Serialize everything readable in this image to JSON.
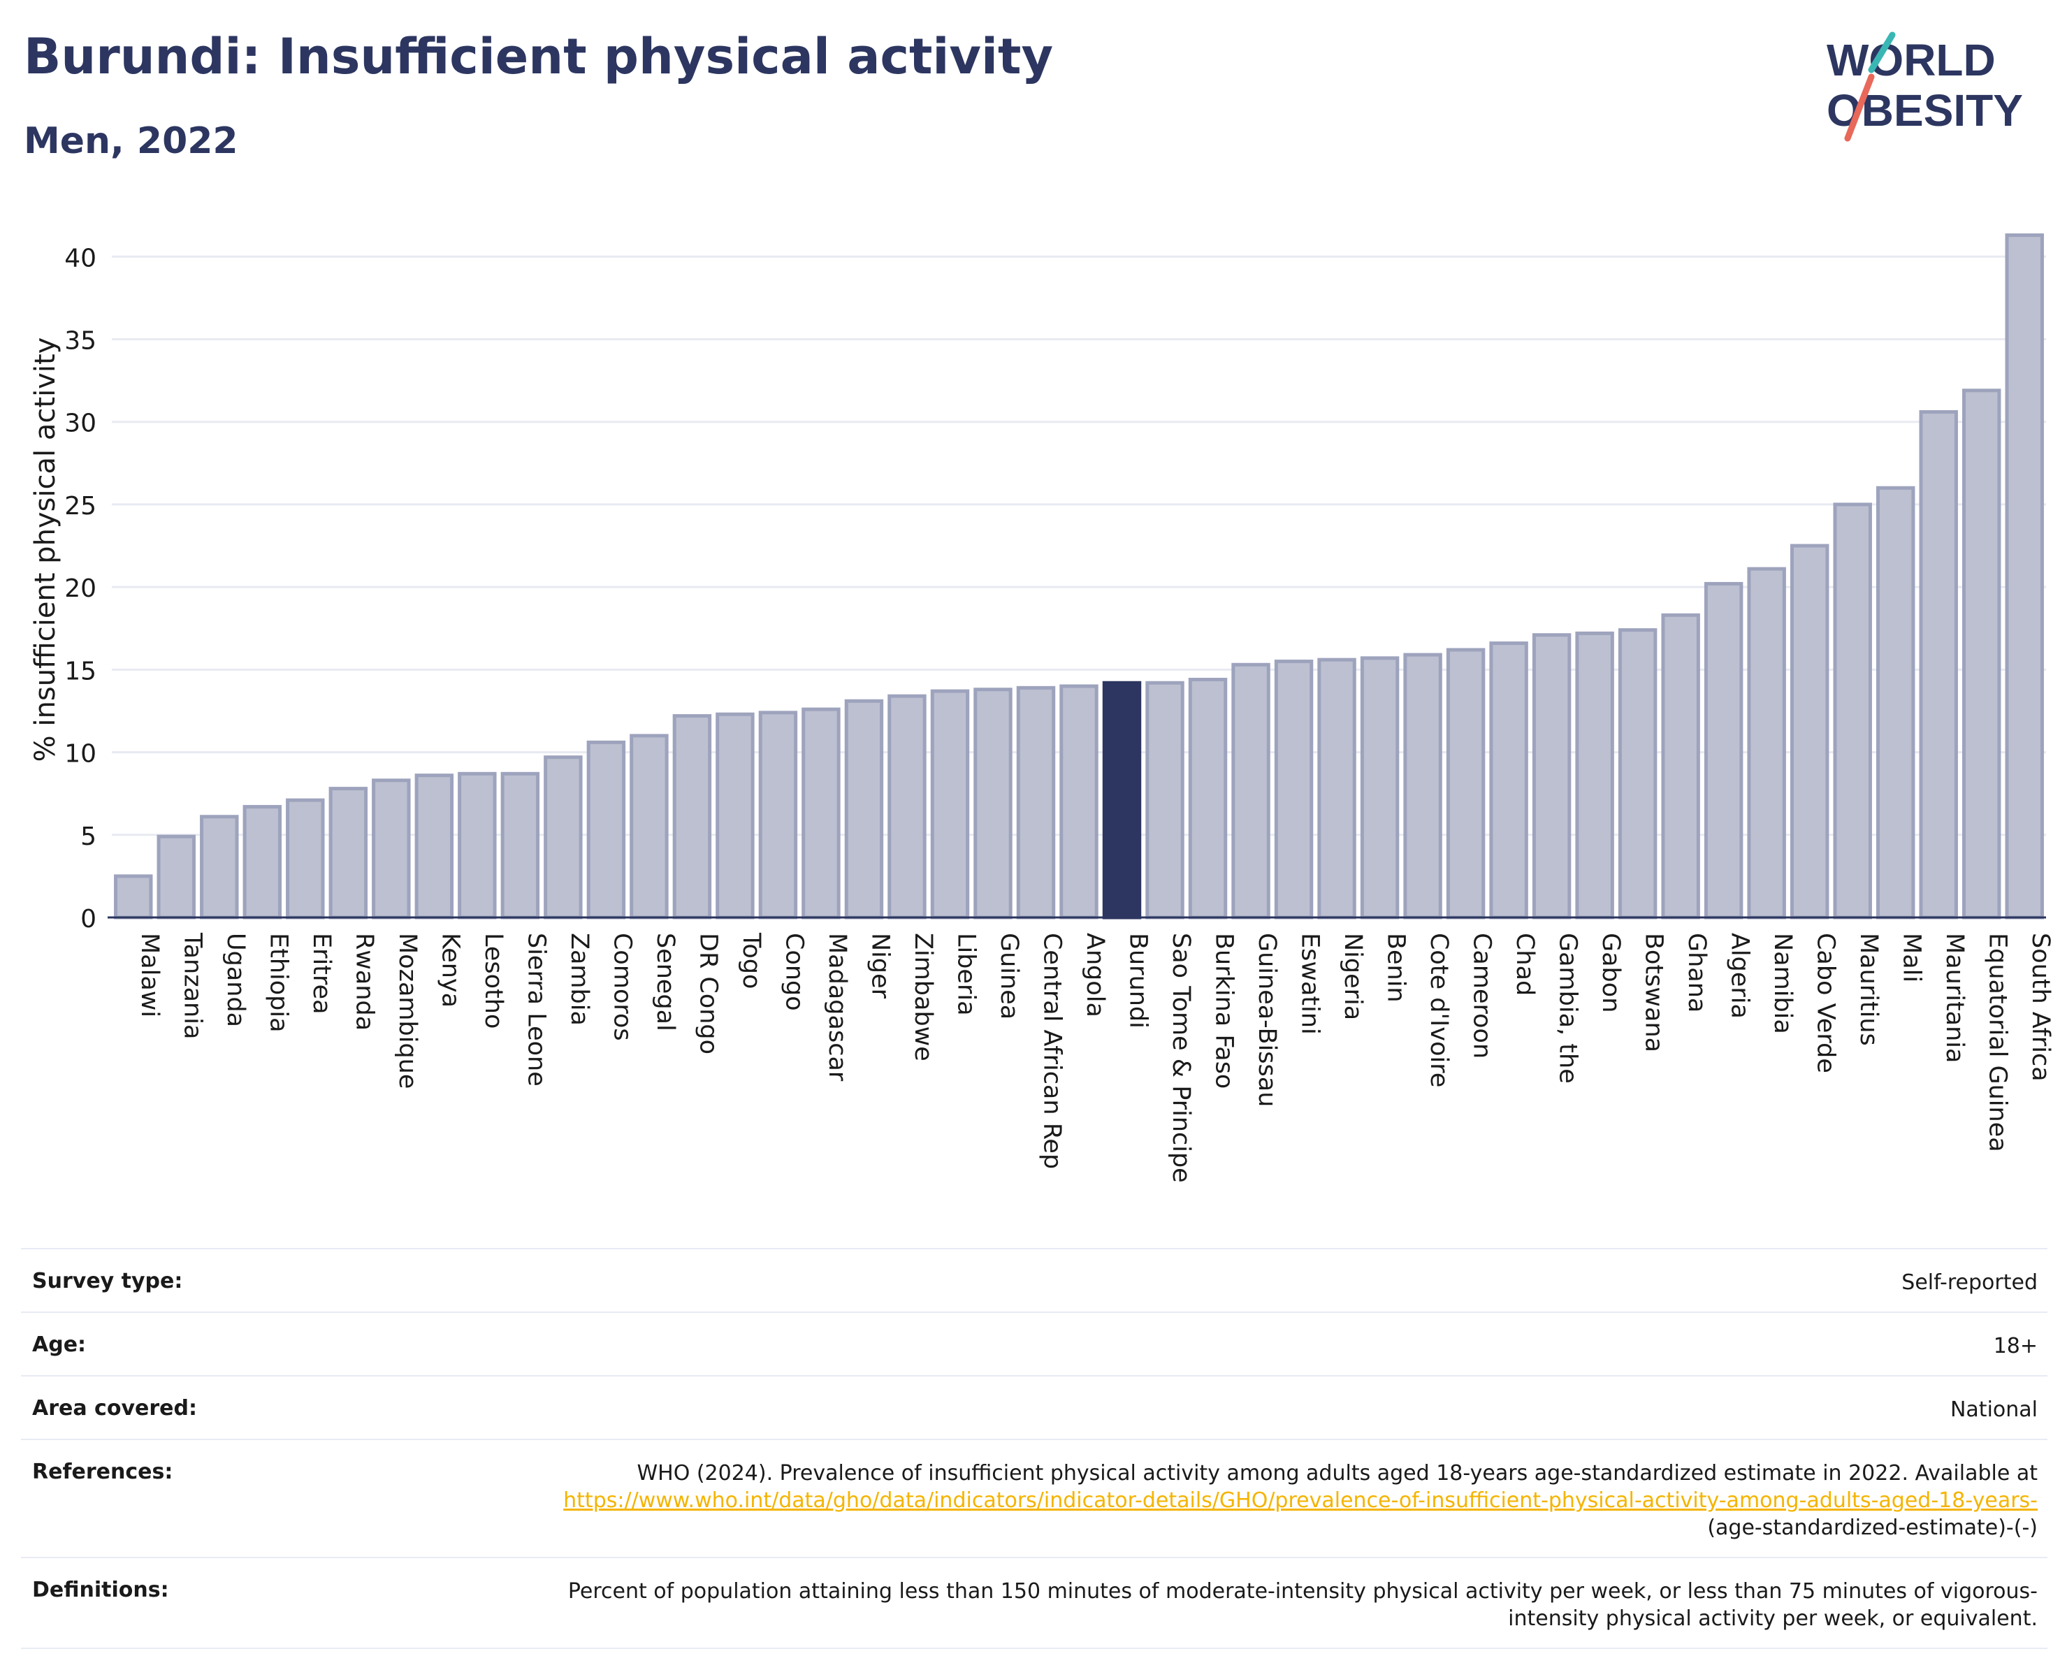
{
  "header": {
    "title": "Burundi: Insufficient physical activity",
    "subtitle": "Men, 2022",
    "logo_line1": "WORLD",
    "logo_line2": "OBESITY"
  },
  "colors": {
    "bar": "#bcc0d0",
    "bar_border": "#9ea3bd",
    "highlight": "#2c3660",
    "title": "#2c3660",
    "link": "#f4b400",
    "logo_teal": "#3ab6b4",
    "logo_coral": "#e8685a"
  },
  "chart_data": {
    "type": "bar",
    "ylabel": "% insufficient physical activity",
    "ylim": [
      0,
      42
    ],
    "yticks": [
      0,
      5,
      10,
      15,
      20,
      25,
      30,
      35,
      40
    ],
    "grid": true,
    "highlight": "Burundi",
    "categories": [
      "Malawi",
      "Tanzania",
      "Uganda",
      "Ethiopia",
      "Eritrea",
      "Rwanda",
      "Mozambique",
      "Kenya",
      "Lesotho",
      "Sierra Leone",
      "Zambia",
      "Comoros",
      "Senegal",
      "DR Congo",
      "Togo",
      "Congo",
      "Madagascar",
      "Niger",
      "Zimbabwe",
      "Liberia",
      "Guinea",
      "Central African Rep",
      "Angola",
      "Burundi",
      "Sao Tome & Principe",
      "Burkina Faso",
      "Guinea-Bissau",
      "Eswatini",
      "Nigeria",
      "Benin",
      "Cote d'Ivoire",
      "Cameroon",
      "Chad",
      "Gambia, the",
      "Gabon",
      "Botswana",
      "Ghana",
      "Algeria",
      "Namibia",
      "Cabo Verde",
      "Mauritius",
      "Mali",
      "Mauritania",
      "Equatorial Guinea",
      "South Africa"
    ],
    "values": [
      2.5,
      4.9,
      6.1,
      6.7,
      7.1,
      7.8,
      8.3,
      8.6,
      8.7,
      8.7,
      9.7,
      10.6,
      11.0,
      12.2,
      12.3,
      12.4,
      12.6,
      13.1,
      13.4,
      13.7,
      13.8,
      13.9,
      14.0,
      14.2,
      14.2,
      14.4,
      15.3,
      15.5,
      15.6,
      15.7,
      15.9,
      16.2,
      16.6,
      17.1,
      17.2,
      17.4,
      18.3,
      20.2,
      21.1,
      22.5,
      25.0,
      26.0,
      30.6,
      31.9,
      41.3
    ]
  },
  "info": {
    "survey_type_label": "Survey type:",
    "survey_type_value": "Self-reported",
    "age_label": "Age:",
    "age_value": "18+",
    "area_label": "Area covered:",
    "area_value": "National",
    "references_label": "References:",
    "references_text": "WHO (2024). Prevalence of insufficient physical activity among adults aged 18-years age-standardized estimate in 2022. Available at",
    "references_link": "https://www.who.int/data/gho/data/indicators/indicator-details/GHO/prevalence-of-insufficient-physical-activity-among-adults-aged-18-years-",
    "references_tail": "(age-standardized-estimate)-(-)",
    "definitions_label": "Definitions:",
    "definitions_text": "Percent of population attaining less than 150 minutes of moderate-intensity physical activity per week, or less than 75 minutes of vigorous-intensity physical activity per week, or equivalent."
  }
}
